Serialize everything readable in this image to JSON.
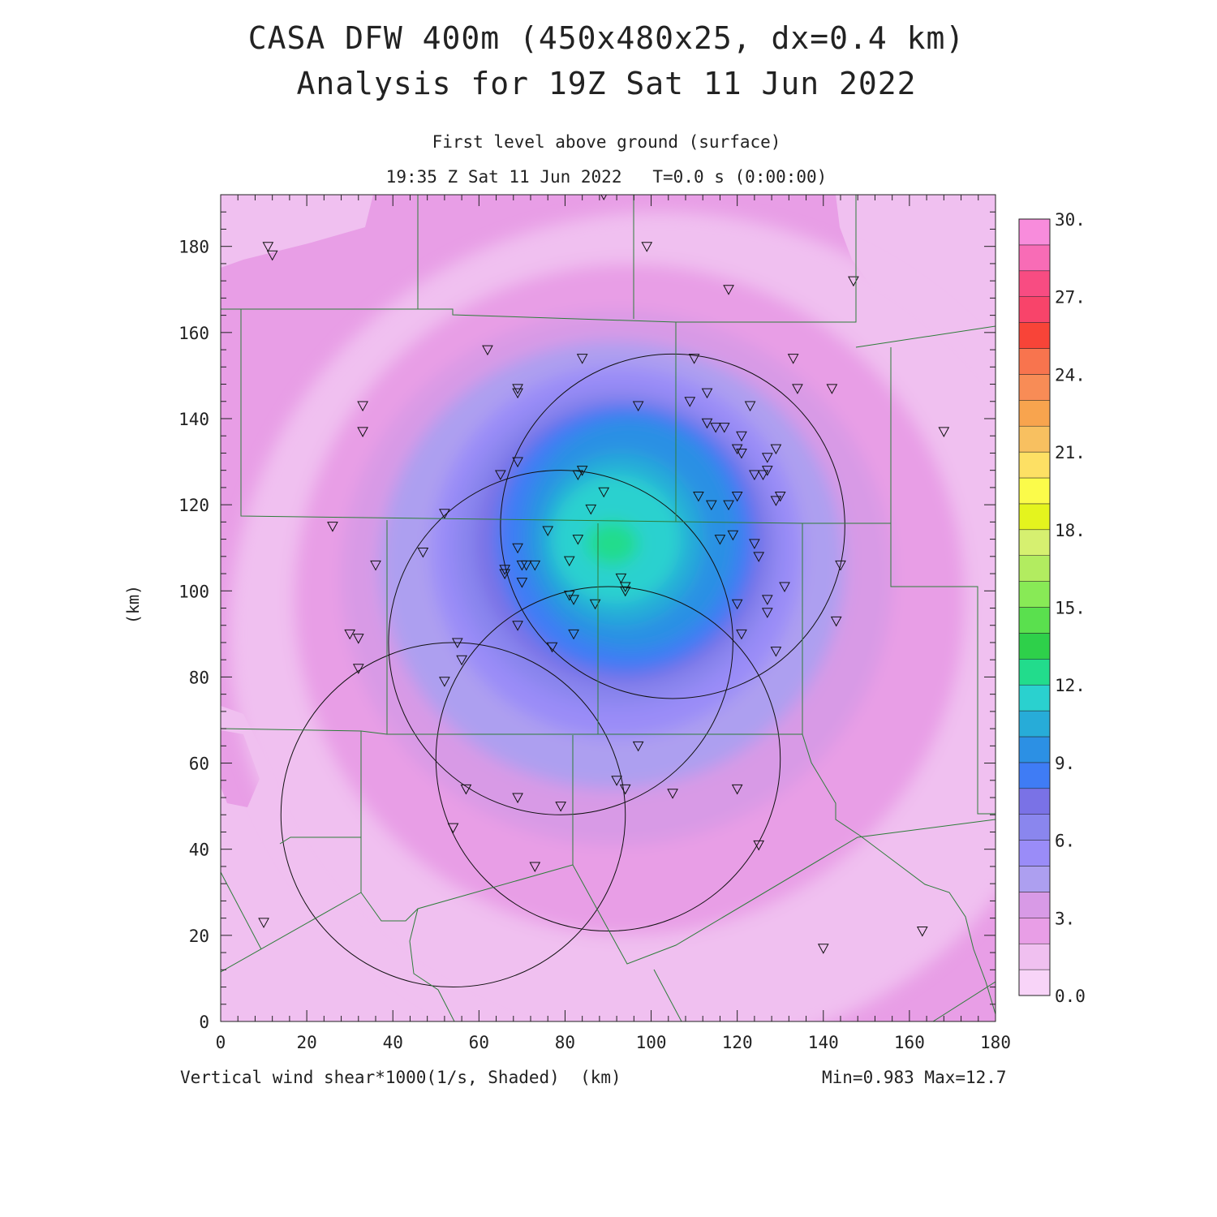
{
  "title": {
    "line1": "CASA DFW 400m (450x480x25, dx=0.4 km)",
    "line2": "Analysis for 19Z Sat 11 Jun 2022",
    "sub1": "First level above ground (surface)",
    "sub2": "19:35 Z Sat 11 Jun 2022   T=0.0 s (0:00:00)"
  },
  "footer": {
    "left": "Vertical wind shear*1000(1/s, Shaded)  (km)",
    "right": "Min=0.983 Max=12.7"
  },
  "axes": {
    "ylabel": "(km)",
    "x_ticks": [
      "0",
      "20",
      "40",
      "60",
      "80",
      "100",
      "120",
      "140",
      "160",
      "180"
    ],
    "y_ticks": [
      "0",
      "20",
      "40",
      "60",
      "80",
      "100",
      "120",
      "140",
      "160",
      "180"
    ],
    "x_range": [
      0,
      180
    ],
    "y_range": [
      0,
      192
    ]
  },
  "colorbar": {
    "labels": [
      "0.0",
      "3.",
      "6.",
      "9.",
      "12.",
      "15.",
      "18.",
      "21.",
      "24.",
      "27.",
      "30."
    ],
    "colors": [
      "#f8d4f8",
      "#f0c0f0",
      "#e89ee6",
      "#d89ae6",
      "#ad9ff0",
      "#9a8cf8",
      "#8a86ee",
      "#7a72e6",
      "#3f7cf5",
      "#2c90e4",
      "#27acd8",
      "#2ad1cf",
      "#22dc8c",
      "#2ed04a",
      "#5ae04e",
      "#88ea56",
      "#b2ec60",
      "#d6f070",
      "#e4f41e",
      "#fbfb4a",
      "#fde064",
      "#f8c060",
      "#f8a44e",
      "#f88c56",
      "#f8744e",
      "#f84438",
      "#f8446a",
      "#f84c82",
      "#f86cb6",
      "#f88cdc"
    ]
  },
  "chart_data": {
    "type": "heatmap",
    "field": "Vertical wind shear*1000 (1/s)",
    "min": 0.983,
    "max": 12.7,
    "levels": [
      0,
      1,
      2,
      3,
      4,
      5,
      6,
      7,
      8,
      9,
      10,
      11,
      12,
      13,
      14,
      15,
      16,
      17,
      18,
      19,
      20,
      21,
      22,
      23,
      24,
      25,
      26,
      27,
      28,
      29,
      30
    ],
    "maximum_location_km": [
      90,
      111
    ],
    "contours_km": [
      {
        "level": 1.5,
        "center": [
          102,
          90
        ],
        "rx": 100,
        "ry": 98
      },
      {
        "level": 2,
        "center": [
          95,
          98
        ],
        "rx": 78,
        "ry": 78
      },
      {
        "level": 3,
        "center": [
          92,
          103
        ],
        "rx": 64,
        "ry": 62
      },
      {
        "level": 4,
        "center": [
          91,
          106
        ],
        "rx": 54,
        "ry": 52
      },
      {
        "level": 5,
        "center": [
          92,
          109
        ],
        "rx": 43,
        "ry": 43
      },
      {
        "level": 6,
        "center": [
          92,
          110
        ],
        "rx": 38,
        "ry": 37
      },
      {
        "level": 7,
        "center": [
          93,
          111
        ],
        "rx": 34,
        "ry": 33
      },
      {
        "level": 8,
        "center": [
          94,
          112
        ],
        "rx": 30,
        "ry": 31
      },
      {
        "level": 9,
        "center": [
          95,
          113
        ],
        "rx": 25,
        "ry": 27
      },
      {
        "level": 10,
        "center": [
          93,
          112
        ],
        "rx": 19,
        "ry": 20
      },
      {
        "level": 11,
        "center": [
          92,
          112
        ],
        "rx": 15,
        "ry": 15
      },
      {
        "level": 12,
        "center": [
          91,
          111
        ],
        "rx": 6,
        "ry": 5
      }
    ],
    "radar_rings_km": [
      {
        "center": [
          105,
          115
        ],
        "r": 40
      },
      {
        "center": [
          79,
          88
        ],
        "r": 40
      },
      {
        "center": [
          90,
          61
        ],
        "r": 40
      },
      {
        "center": [
          54,
          48
        ],
        "r": 40
      }
    ],
    "stations_km": [
      [
        11,
        180
      ],
      [
        12,
        178
      ],
      [
        99,
        180
      ],
      [
        89,
        192
      ],
      [
        118,
        170
      ],
      [
        147,
        172
      ],
      [
        62,
        156
      ],
      [
        84,
        154
      ],
      [
        110,
        154
      ],
      [
        133,
        154
      ],
      [
        134,
        147
      ],
      [
        142,
        147
      ],
      [
        69,
        147
      ],
      [
        69,
        146
      ],
      [
        113,
        146
      ],
      [
        109,
        144
      ],
      [
        123,
        143
      ],
      [
        97,
        143
      ],
      [
        33,
        143
      ],
      [
        33,
        137
      ],
      [
        113,
        139
      ],
      [
        115,
        138
      ],
      [
        117,
        138
      ],
      [
        121,
        136
      ],
      [
        129,
        133
      ],
      [
        120,
        133
      ],
      [
        121,
        132
      ],
      [
        127,
        131
      ],
      [
        127,
        128
      ],
      [
        126,
        127
      ],
      [
        124,
        127
      ],
      [
        168,
        137
      ],
      [
        69,
        130
      ],
      [
        84,
        128
      ],
      [
        83,
        127
      ],
      [
        65,
        127
      ],
      [
        89,
        123
      ],
      [
        111,
        122
      ],
      [
        120,
        122
      ],
      [
        130,
        122
      ],
      [
        129,
        121
      ],
      [
        114,
        120
      ],
      [
        118,
        120
      ],
      [
        86,
        119
      ],
      [
        52,
        118
      ],
      [
        26,
        115
      ],
      [
        76,
        114
      ],
      [
        69,
        110
      ],
      [
        83,
        112
      ],
      [
        116,
        112
      ],
      [
        119,
        113
      ],
      [
        124,
        111
      ],
      [
        125,
        108
      ],
      [
        47,
        109
      ],
      [
        36,
        106
      ],
      [
        81,
        107
      ],
      [
        70,
        106
      ],
      [
        71,
        106
      ],
      [
        73,
        106
      ],
      [
        66,
        105
      ],
      [
        66,
        104
      ],
      [
        70,
        102
      ],
      [
        93,
        103
      ],
      [
        94,
        101
      ],
      [
        94,
        100
      ],
      [
        131,
        101
      ],
      [
        127,
        98
      ],
      [
        144,
        106
      ],
      [
        81,
        99
      ],
      [
        82,
        98
      ],
      [
        87,
        97
      ],
      [
        120,
        97
      ],
      [
        127,
        95
      ],
      [
        143,
        93
      ],
      [
        69,
        92
      ],
      [
        82,
        90
      ],
      [
        121,
        90
      ],
      [
        30,
        90
      ],
      [
        32,
        89
      ],
      [
        77,
        87
      ],
      [
        55,
        88
      ],
      [
        56,
        84
      ],
      [
        129,
        86
      ],
      [
        52,
        79
      ],
      [
        32,
        82
      ],
      [
        97,
        64
      ],
      [
        92,
        56
      ],
      [
        94,
        54
      ],
      [
        57,
        54
      ],
      [
        105,
        53
      ],
      [
        120,
        54
      ],
      [
        69,
        52
      ],
      [
        79,
        50
      ],
      [
        54,
        45
      ],
      [
        125,
        41
      ],
      [
        73,
        36
      ],
      [
        10,
        23
      ],
      [
        163,
        21
      ],
      [
        140,
        17
      ]
    ]
  }
}
